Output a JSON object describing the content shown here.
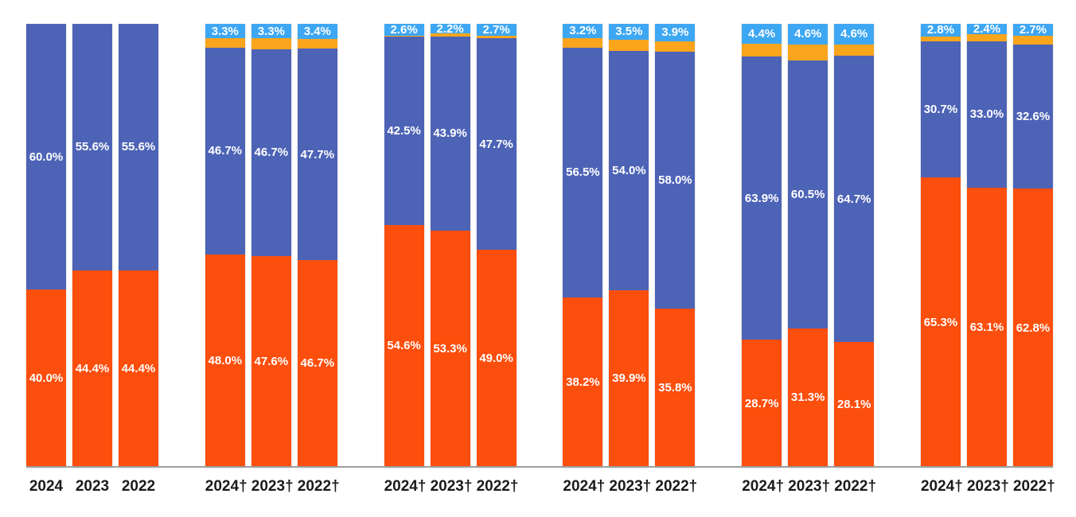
{
  "chart_data": {
    "type": "bar",
    "stacked": true,
    "orientation": "vertical",
    "unit": "%",
    "ylim": [
      0,
      100
    ],
    "grid": false,
    "legend": "none",
    "axis_line_color": "#9e9e9e",
    "x_tick_color": "#1a1a1a",
    "data_label_color": "#ffffff",
    "colors": {
      "orange": "#fc4e0d",
      "blue": "#4d63b6",
      "amber": "#fba51d",
      "light_blue": "#3da7f3"
    },
    "segment_order_bottom_to_top": [
      "orange",
      "blue",
      "amber",
      "light_blue"
    ],
    "groups": [
      {
        "bars": [
          {
            "x": "2024",
            "segments": [
              {
                "series": "orange",
                "value": 40.0,
                "label": "40.0%"
              },
              {
                "series": "blue",
                "value": 60.0,
                "label": "60.0%"
              }
            ]
          },
          {
            "x": "2023",
            "segments": [
              {
                "series": "orange",
                "value": 44.4,
                "label": "44.4%"
              },
              {
                "series": "blue",
                "value": 55.6,
                "label": "55.6%"
              }
            ]
          },
          {
            "x": "2022",
            "segments": [
              {
                "series": "orange",
                "value": 44.4,
                "label": "44.4%"
              },
              {
                "series": "blue",
                "value": 55.6,
                "label": "55.6%"
              }
            ]
          }
        ]
      },
      {
        "bars": [
          {
            "x": "2024†",
            "segments": [
              {
                "series": "orange",
                "value": 48.0,
                "label": "48.0%"
              },
              {
                "series": "blue",
                "value": 46.7,
                "label": "46.7%"
              },
              {
                "series": "amber",
                "value": 2.0,
                "label": null
              },
              {
                "series": "light_blue",
                "value": 3.3,
                "label": "3.3%"
              }
            ]
          },
          {
            "x": "2023†",
            "segments": [
              {
                "series": "orange",
                "value": 47.6,
                "label": "47.6%"
              },
              {
                "series": "blue",
                "value": 46.7,
                "label": "46.7%"
              },
              {
                "series": "amber",
                "value": 2.4,
                "label": null
              },
              {
                "series": "light_blue",
                "value": 3.3,
                "label": "3.3%"
              }
            ]
          },
          {
            "x": "2022†",
            "segments": [
              {
                "series": "orange",
                "value": 46.7,
                "label": "46.7%"
              },
              {
                "series": "blue",
                "value": 47.7,
                "label": "47.7%"
              },
              {
                "series": "amber",
                "value": 2.2,
                "label": null
              },
              {
                "series": "light_blue",
                "value": 3.4,
                "label": "3.4%"
              }
            ]
          }
        ]
      },
      {
        "bars": [
          {
            "x": "2024†",
            "segments": [
              {
                "series": "orange",
                "value": 54.6,
                "label": "54.6%"
              },
              {
                "series": "blue",
                "value": 42.5,
                "label": "42.5%"
              },
              {
                "series": "amber",
                "value": 0.3,
                "label": null
              },
              {
                "series": "light_blue",
                "value": 2.6,
                "label": "2.6%"
              }
            ]
          },
          {
            "x": "2023†",
            "segments": [
              {
                "series": "orange",
                "value": 53.3,
                "label": "53.3%"
              },
              {
                "series": "blue",
                "value": 43.9,
                "label": "43.9%"
              },
              {
                "series": "amber",
                "value": 0.6,
                "label": null
              },
              {
                "series": "light_blue",
                "value": 2.2,
                "label": "2.2%"
              }
            ]
          },
          {
            "x": "2022†",
            "segments": [
              {
                "series": "orange",
                "value": 49.0,
                "label": "49.0%"
              },
              {
                "series": "blue",
                "value": 47.7,
                "label": "47.7%"
              },
              {
                "series": "amber",
                "value": 0.6,
                "label": null
              },
              {
                "series": "light_blue",
                "value": 2.7,
                "label": "2.7%"
              }
            ]
          }
        ]
      },
      {
        "bars": [
          {
            "x": "2024†",
            "segments": [
              {
                "series": "orange",
                "value": 38.2,
                "label": "38.2%"
              },
              {
                "series": "blue",
                "value": 56.5,
                "label": "56.5%"
              },
              {
                "series": "amber",
                "value": 2.1,
                "label": null
              },
              {
                "series": "light_blue",
                "value": 3.2,
                "label": "3.2%"
              }
            ]
          },
          {
            "x": "2023†",
            "segments": [
              {
                "series": "orange",
                "value": 39.9,
                "label": "39.9%"
              },
              {
                "series": "blue",
                "value": 54.0,
                "label": "54.0%"
              },
              {
                "series": "amber",
                "value": 2.6,
                "label": null
              },
              {
                "series": "light_blue",
                "value": 3.5,
                "label": "3.5%"
              }
            ]
          },
          {
            "x": "2022†",
            "segments": [
              {
                "series": "orange",
                "value": 35.8,
                "label": "35.8%"
              },
              {
                "series": "blue",
                "value": 58.0,
                "label": "58.0%"
              },
              {
                "series": "amber",
                "value": 2.3,
                "label": null
              },
              {
                "series": "light_blue",
                "value": 3.9,
                "label": "3.9%"
              }
            ]
          }
        ]
      },
      {
        "bars": [
          {
            "x": "2024†",
            "segments": [
              {
                "series": "orange",
                "value": 28.7,
                "label": "28.7%"
              },
              {
                "series": "blue",
                "value": 63.9,
                "label": "63.9%"
              },
              {
                "series": "amber",
                "value": 3.0,
                "label": null
              },
              {
                "series": "light_blue",
                "value": 4.4,
                "label": "4.4%"
              }
            ]
          },
          {
            "x": "2023†",
            "segments": [
              {
                "series": "orange",
                "value": 31.3,
                "label": "31.3%"
              },
              {
                "series": "blue",
                "value": 60.5,
                "label": "60.5%"
              },
              {
                "series": "amber",
                "value": 3.6,
                "label": null
              },
              {
                "series": "light_blue",
                "value": 4.6,
                "label": "4.6%"
              }
            ]
          },
          {
            "x": "2022†",
            "segments": [
              {
                "series": "orange",
                "value": 28.1,
                "label": "28.1%"
              },
              {
                "series": "blue",
                "value": 64.7,
                "label": "64.7%"
              },
              {
                "series": "amber",
                "value": 2.6,
                "label": null
              },
              {
                "series": "light_blue",
                "value": 4.6,
                "label": "4.6%"
              }
            ]
          }
        ]
      },
      {
        "bars": [
          {
            "x": "2024†",
            "segments": [
              {
                "series": "orange",
                "value": 65.3,
                "label": "65.3%"
              },
              {
                "series": "blue",
                "value": 30.7,
                "label": "30.7%"
              },
              {
                "series": "amber",
                "value": 1.2,
                "label": null
              },
              {
                "series": "light_blue",
                "value": 2.8,
                "label": "2.8%"
              }
            ]
          },
          {
            "x": "2023†",
            "segments": [
              {
                "series": "orange",
                "value": 63.1,
                "label": "63.1%"
              },
              {
                "series": "blue",
                "value": 33.0,
                "label": "33.0%"
              },
              {
                "series": "amber",
                "value": 1.5,
                "label": null
              },
              {
                "series": "light_blue",
                "value": 2.4,
                "label": "2.4%"
              }
            ]
          },
          {
            "x": "2022†",
            "segments": [
              {
                "series": "orange",
                "value": 62.8,
                "label": "62.8%"
              },
              {
                "series": "blue",
                "value": 32.6,
                "label": "32.6%"
              },
              {
                "series": "amber",
                "value": 1.9,
                "label": null
              },
              {
                "series": "light_blue",
                "value": 2.7,
                "label": "2.7%"
              }
            ]
          }
        ]
      }
    ]
  }
}
